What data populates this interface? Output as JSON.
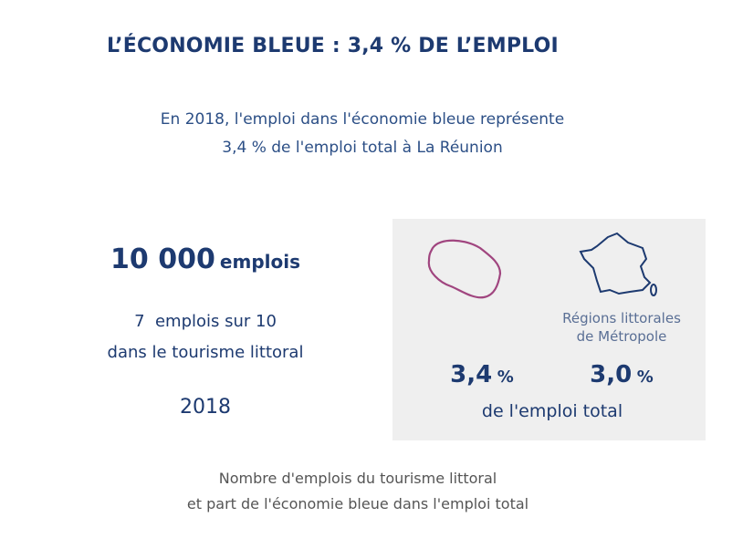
{
  "header": {
    "title": "L’ÉCONOMIE BLEUE : 3,4 % DE L’EMPLOI",
    "subtitle": [
      "En 2018, l'emploi dans l'économie bleue représente",
      "3,4 % de l'emploi total à La Réunion"
    ]
  },
  "left": {
    "number": "10 000",
    "unit": "emplois",
    "line1": "7  emplois sur 10",
    "line2": "dans le tourisme littoral",
    "year": "2018"
  },
  "right": {
    "metropole_label": [
      "Régions littorales",
      "de Métropole"
    ],
    "reunion_value": "3,4",
    "reunion_unit": "%",
    "metropole_value": "3,0",
    "metropole_unit": "%",
    "caption": "de l'emploi total"
  },
  "footer": [
    "Nombre d'emplois du tourisme littoral",
    "et part de l'économie bleue dans l'emploi total"
  ]
}
